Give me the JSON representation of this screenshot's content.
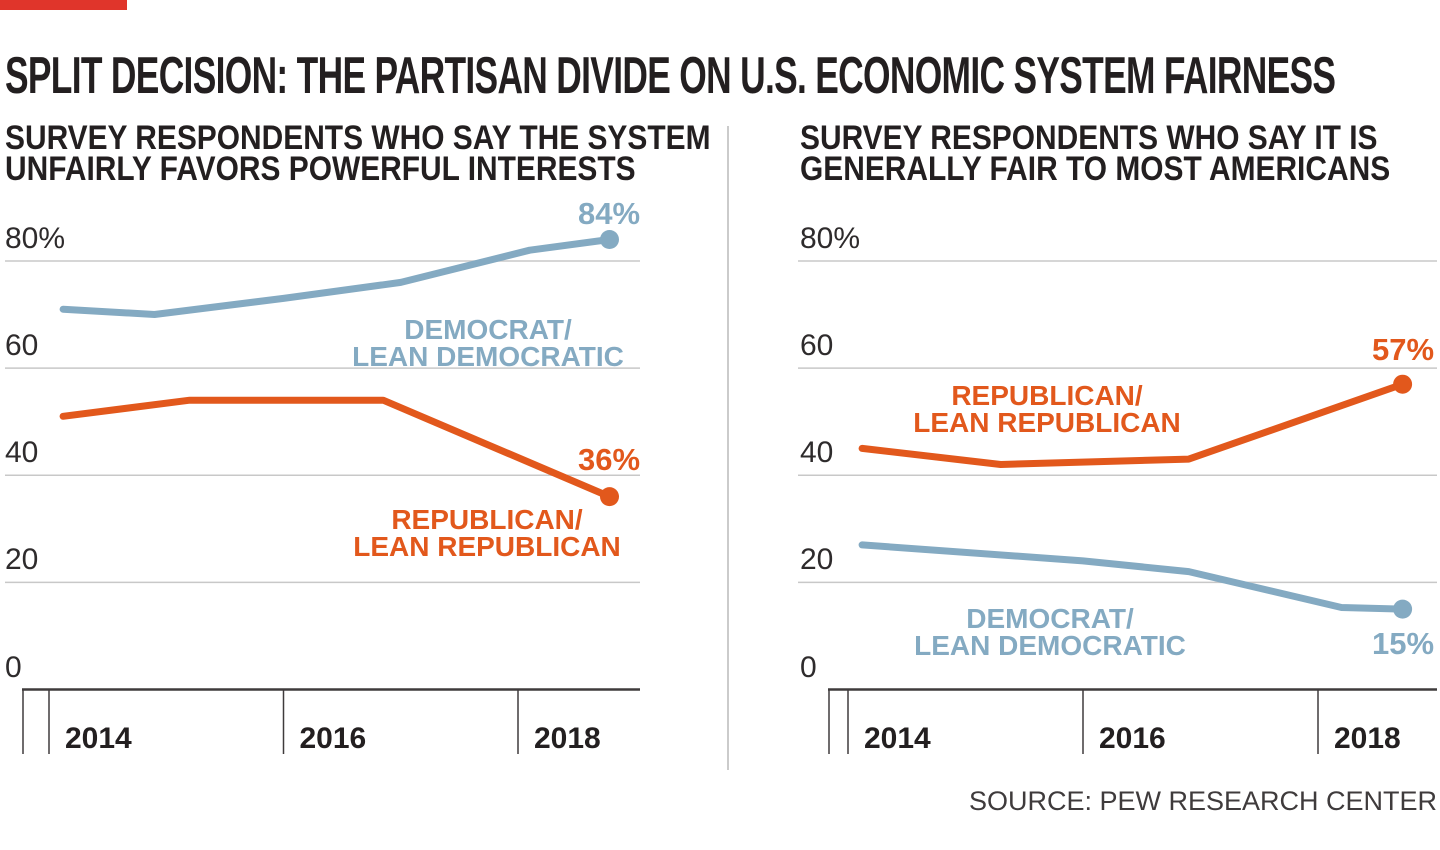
{
  "title": "SPLIT DECISION: THE PARTISAN DIVIDE ON U.S. ECONOMIC SYSTEM FAIRNESS",
  "source": "SOURCE: PEW RESEARCH CENTER",
  "colors": {
    "democrat_blue": "#84aac2",
    "republican_orange": "#e2581c",
    "title_dark": "#231f20",
    "gridline_gray": "#c8c8c8",
    "axis_dark": "#3f3b3c",
    "accent_red": "#e0352b",
    "divider_gray": "#cbcbcb",
    "source_gray": "#3f3b3c",
    "background": "#ffffff"
  },
  "chart_data": [
    {
      "panel": "left",
      "type": "line",
      "subtitle": [
        "SURVEY RESPONDENTS WHO SAY THE SYSTEM",
        "UNFAIRLY FAVORS POWERFUL INTERESTS"
      ],
      "unit": "percent",
      "ylim": [
        0,
        88
      ],
      "grid": "horizontal",
      "y_ticks": [
        {
          "label": "80%",
          "value": 80
        },
        {
          "label": "60",
          "value": 60
        },
        {
          "label": "40",
          "value": 40
        },
        {
          "label": "20",
          "value": 20
        },
        {
          "label": "0",
          "value": 0
        }
      ],
      "x_ticks": [
        {
          "label": "2014",
          "value": 2014
        },
        {
          "label": "2016",
          "value": 2016
        },
        {
          "label": "2018",
          "value": 2018
        }
      ],
      "series": [
        {
          "name": "Democrat/Lean Democratic",
          "label_lines": [
            "DEMOCRAT/",
            "LEAN DEMOCRATIC"
          ],
          "color": "#84aac2",
          "end_label": "84%",
          "points": [
            [
              2014.12,
              71
            ],
            [
              2014.9,
              70
            ],
            [
              2016.0,
              73
            ],
            [
              2017.0,
              76
            ],
            [
              2018.1,
              82
            ],
            [
              2018.78,
              84
            ]
          ]
        },
        {
          "name": "Republican/Lean Republican",
          "label_lines": [
            "REPUBLICAN/",
            "LEAN REPUBLICAN"
          ],
          "color": "#e2581c",
          "end_label": "36%",
          "points": [
            [
              2014.12,
              51
            ],
            [
              2015.2,
              54
            ],
            [
              2016.85,
              54
            ],
            [
              2018.78,
              36
            ]
          ]
        }
      ]
    },
    {
      "panel": "right",
      "type": "line",
      "subtitle": [
        "SURVEY RESPONDENTS WHO SAY IT IS",
        "GENERALLY FAIR TO MOST AMERICANS"
      ],
      "unit": "percent",
      "ylim": [
        0,
        88
      ],
      "grid": "horizontal",
      "y_ticks": [
        {
          "label": "80%",
          "value": 80
        },
        {
          "label": "60",
          "value": 60
        },
        {
          "label": "40",
          "value": 40
        },
        {
          "label": "20",
          "value": 20
        },
        {
          "label": "0",
          "value": 0
        }
      ],
      "x_ticks": [
        {
          "label": "2014",
          "value": 2014
        },
        {
          "label": "2016",
          "value": 2016
        },
        {
          "label": "2018",
          "value": 2018
        }
      ],
      "series": [
        {
          "name": "Republican/Lean Republican",
          "label_lines": [
            "REPUBLICAN/",
            "LEAN REPUBLICAN"
          ],
          "color": "#e2581c",
          "end_label": "57%",
          "points": [
            [
              2014.12,
              45
            ],
            [
              2015.3,
              42
            ],
            [
              2016.9,
              43
            ],
            [
              2018.72,
              57
            ]
          ]
        },
        {
          "name": "Democrat/Lean Democratic",
          "label_lines": [
            "DEMOCRAT/",
            "LEAN DEMOCRATIC"
          ],
          "color": "#84aac2",
          "end_label": "15%",
          "points": [
            [
              2014.12,
              27
            ],
            [
              2016.0,
              24
            ],
            [
              2016.9,
              22
            ],
            [
              2018.2,
              15.3
            ],
            [
              2018.72,
              15
            ]
          ]
        }
      ]
    }
  ]
}
